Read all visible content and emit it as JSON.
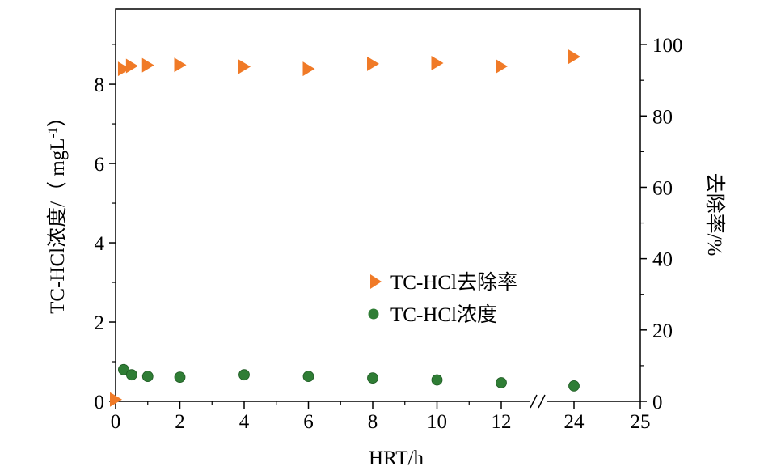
{
  "chart_data": {
    "type": "scatter",
    "xlabel": "HRT/h",
    "ylabel_left_main": "TC-HCl浓度/（ mgL",
    "ylabel_left_sup": "-1",
    "ylabel_left_end": "）",
    "ylabel_right": "去除率/%",
    "x_ticks": [
      "0",
      "2",
      "4",
      "6",
      "8",
      "10",
      "12",
      "24",
      "25"
    ],
    "y_left_ticks": [
      "0",
      "2",
      "4",
      "6",
      "8"
    ],
    "y_right_ticks": [
      "0",
      "20",
      "40",
      "60",
      "80",
      "100"
    ],
    "ylim_left": [
      0,
      9.9
    ],
    "ylim_right": [
      0,
      110
    ],
    "x_axis_break_between": [
      12,
      24
    ],
    "series": [
      {
        "name": "TC-HCl去除率",
        "axis": "right",
        "marker": "triangle-right",
        "color": "#f07a27",
        "x": [
          0,
          0.25,
          0.5,
          1,
          2,
          4,
          6,
          8,
          10,
          12,
          24
        ],
        "y": [
          0.5,
          93.2,
          94.0,
          94.2,
          94.3,
          93.8,
          93.2,
          94.6,
          94.8,
          93.9,
          96.6
        ]
      },
      {
        "name": "TC-HCl浓度",
        "axis": "left",
        "marker": "circle",
        "color": "#2f7d35",
        "x": [
          0.25,
          0.5,
          1,
          2,
          4,
          6,
          8,
          10,
          12,
          24
        ],
        "y": [
          0.8,
          0.67,
          0.63,
          0.61,
          0.67,
          0.63,
          0.59,
          0.54,
          0.47,
          0.39
        ]
      }
    ],
    "legend_position": "center-right",
    "grid": false
  }
}
